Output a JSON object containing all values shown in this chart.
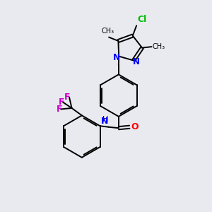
{
  "background_color": "#e8eaf0",
  "bond_color": "#000000",
  "nitrogen_color": "#0000ff",
  "oxygen_color": "#ff0000",
  "fluorine_color": "#cc00cc",
  "chlorine_color": "#00bb00",
  "figsize": [
    3.0,
    3.0
  ],
  "dpi": 100,
  "xlim": [
    0,
    10
  ],
  "ylim": [
    0,
    10
  ]
}
